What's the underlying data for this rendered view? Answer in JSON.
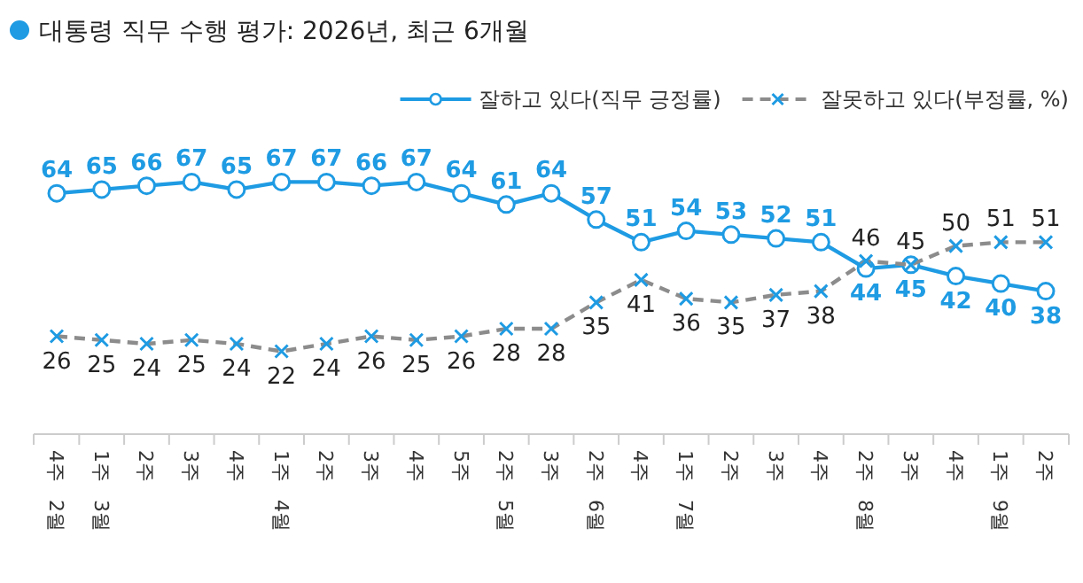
{
  "chart_data": {
    "type": "line",
    "title": "대통령 직무 수행 평가: 2026년, 최근 6개월",
    "categories": [
      "4주 2월",
      "1주 3월",
      "2주",
      "3주",
      "4주",
      "1주 4월",
      "2주",
      "3주",
      "4주",
      "5주",
      "2주 5월",
      "3주",
      "2주 6월",
      "4주",
      "1주 7월",
      "2주",
      "3주",
      "4주",
      "2주 8월",
      "3주",
      "4주",
      "1주 9월",
      "2주"
    ],
    "series": [
      {
        "name": "잘하고 있다(직무 긍정률)",
        "color": "#1e9be3",
        "marker": "circle",
        "line_style": "solid",
        "values": [
          64,
          65,
          66,
          67,
          65,
          67,
          67,
          66,
          67,
          64,
          61,
          64,
          57,
          51,
          54,
          53,
          52,
          51,
          44,
          45,
          42,
          40,
          38
        ]
      },
      {
        "name": "잘못하고 있다(부정률, %)",
        "color": "#8c8c8c",
        "marker": "cross",
        "line_style": "dashed",
        "values": [
          26,
          25,
          24,
          25,
          24,
          22,
          24,
          26,
          25,
          26,
          28,
          28,
          35,
          41,
          36,
          35,
          37,
          38,
          46,
          45,
          50,
          51,
          51
        ]
      }
    ],
    "data_labels": true,
    "legend": "top right"
  }
}
